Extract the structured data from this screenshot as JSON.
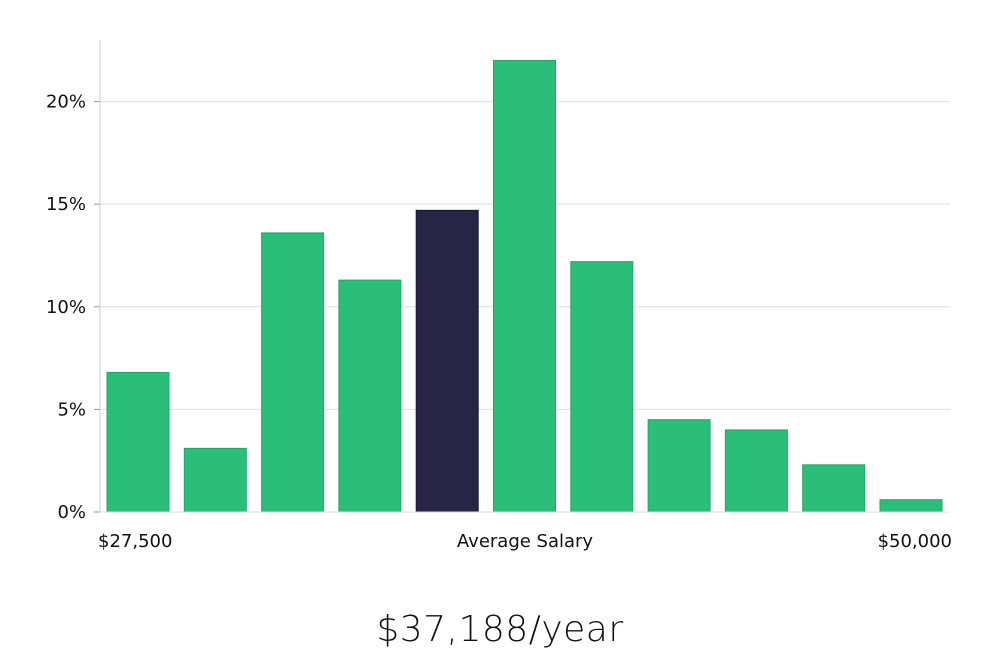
{
  "chart_data": {
    "type": "bar",
    "categories": [
      "",
      "",
      "",
      "",
      "",
      "",
      "",
      "",
      "",
      "",
      ""
    ],
    "values": [
      6.8,
      3.1,
      13.6,
      11.3,
      14.7,
      22.0,
      12.2,
      4.5,
      4.0,
      2.3,
      0.6
    ],
    "highlight_index": 4,
    "ylim": [
      0,
      23
    ],
    "y_ticks": [
      "0%",
      "5%",
      "10%",
      "15%",
      "20%"
    ],
    "y_tick_values": [
      0,
      5,
      10,
      15,
      20
    ],
    "x_labels": {
      "left": "$27,500",
      "center": "Average Salary",
      "right": "$50,000"
    },
    "grid": true,
    "colors": {
      "bar": "#2abe78",
      "bar_edge": "#22a866",
      "highlight": "#272445",
      "grid": "#dddddd",
      "axis": "#cccccc"
    }
  },
  "summary": {
    "value": "$37,188/year"
  }
}
